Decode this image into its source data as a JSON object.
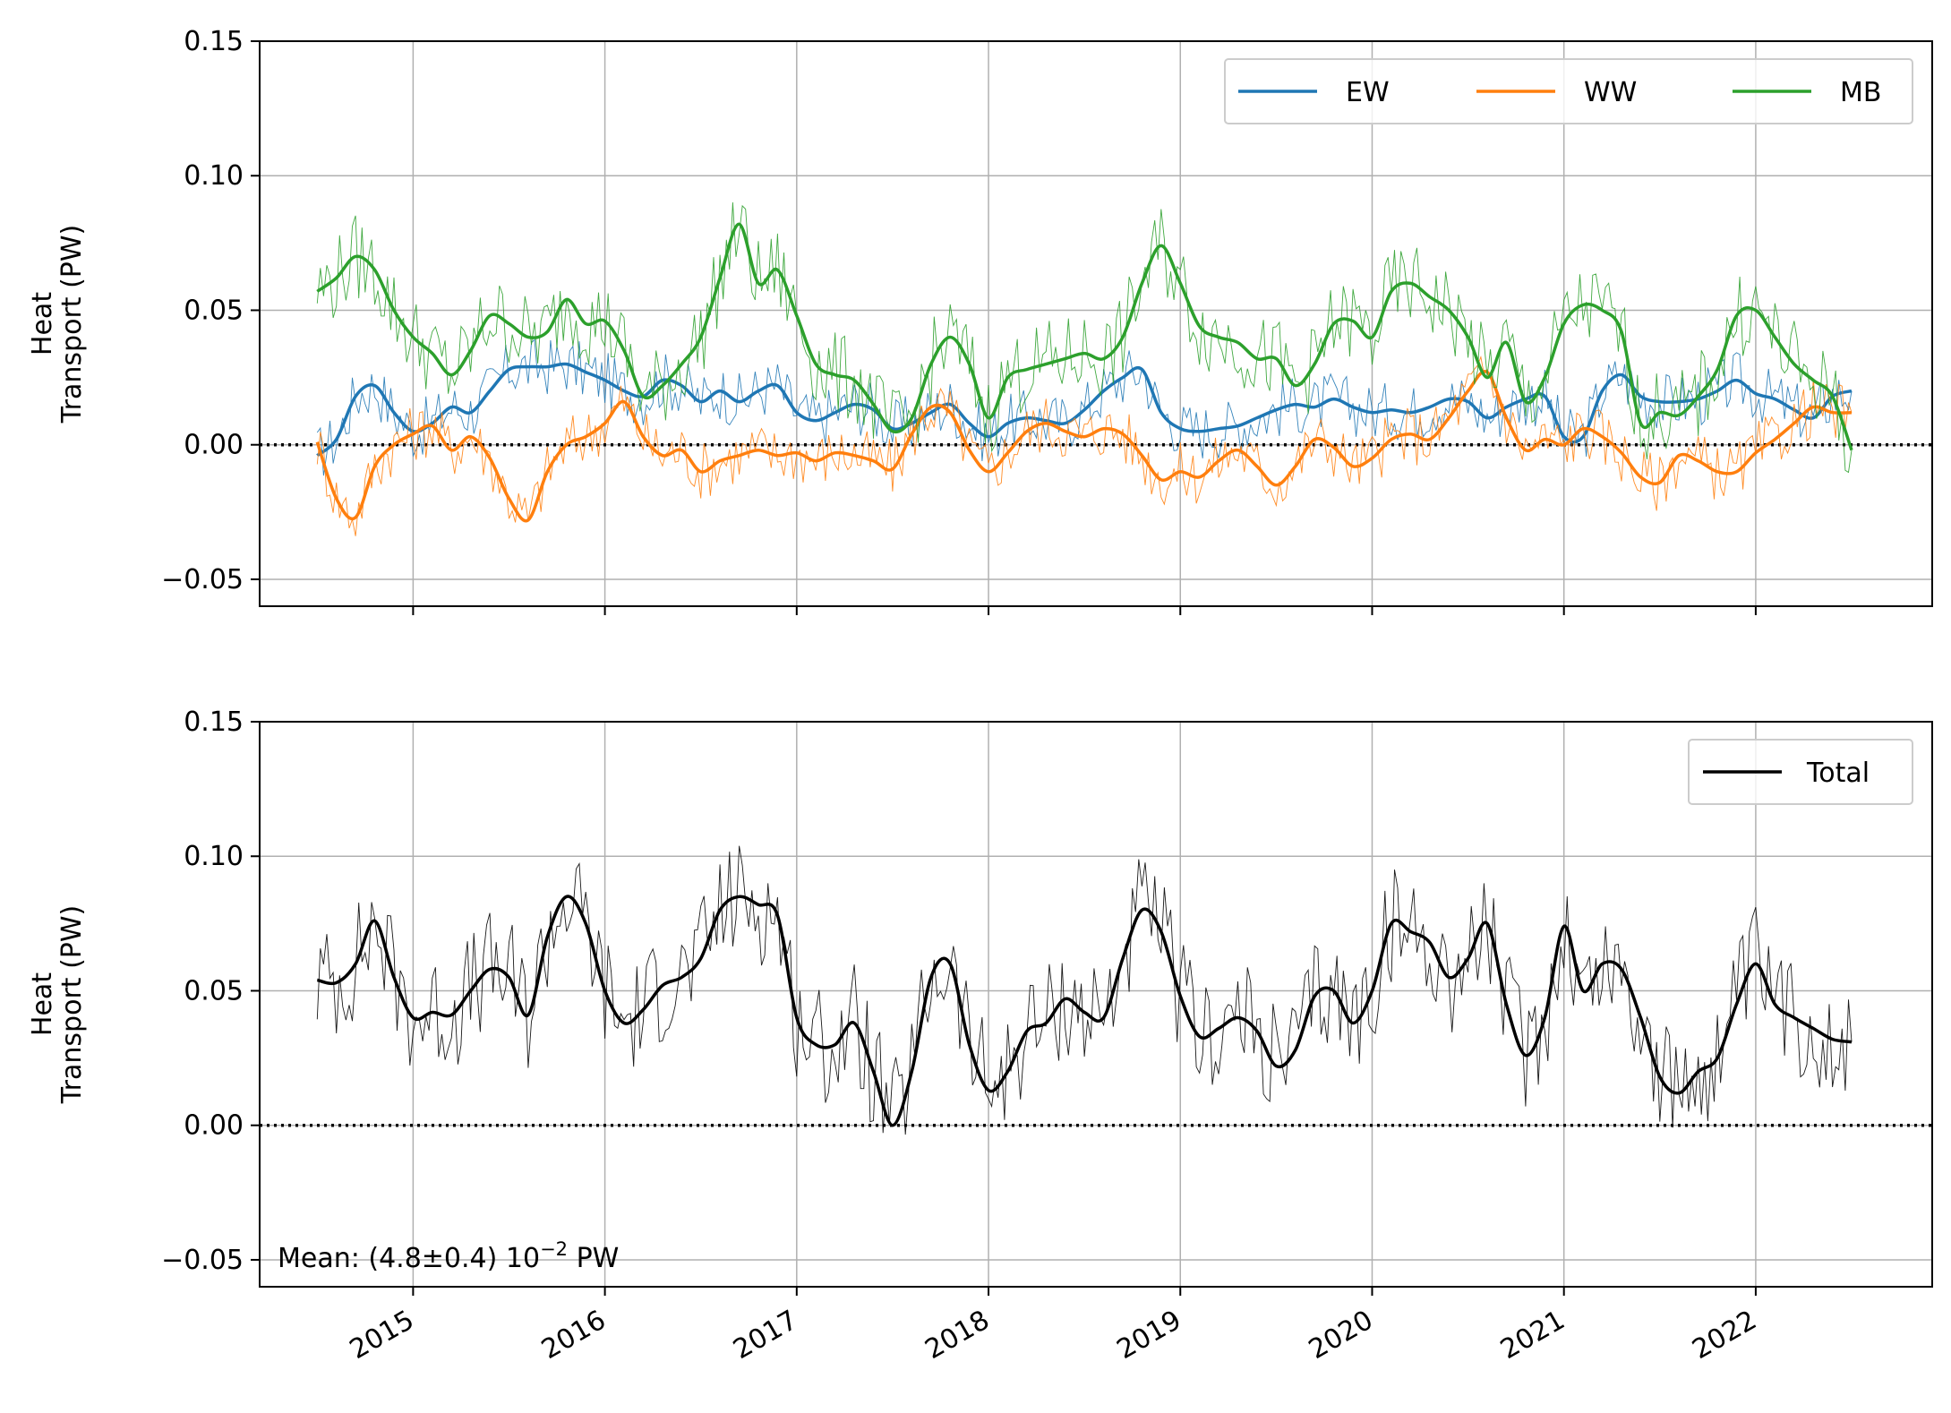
{
  "figure": {
    "colors": {
      "EW": "#1f77b4",
      "WW": "#ff7f0e",
      "MB": "#2ca02c",
      "Total": "#000000",
      "grid": "#b0b0b0"
    }
  },
  "chart_data": [
    {
      "type": "line",
      "panel": "top",
      "title": "",
      "ylabel_lines": [
        "Heat",
        "Transport (PW)"
      ],
      "xlabel": "",
      "ylim": [
        -0.06,
        0.15
      ],
      "yticks": [
        -0.05,
        0.0,
        0.05,
        0.1,
        0.15
      ],
      "ytick_labels": [
        "−0.05",
        "0.00",
        "0.05",
        "0.10",
        "0.15"
      ],
      "xlim": [
        2014.2,
        2022.92
      ],
      "xticks": [
        2015,
        2016,
        2017,
        2018,
        2019,
        2020,
        2021,
        2022
      ],
      "xtick_labels": [
        "",
        "",
        "",
        "",
        "",
        "",
        "",
        ""
      ],
      "grid": true,
      "zero_line": "dotted",
      "legend": {
        "placement": "top-right",
        "columns": 3
      },
      "series": [
        {
          "name": "EW",
          "color": "#1f77b4",
          "x": [
            2014.5,
            2014.6,
            2014.7,
            2014.8,
            2014.9,
            2015.0,
            2015.1,
            2015.2,
            2015.3,
            2015.4,
            2015.5,
            2015.6,
            2015.7,
            2015.8,
            2015.9,
            2016.0,
            2016.1,
            2016.2,
            2016.3,
            2016.4,
            2016.5,
            2016.6,
            2016.7,
            2016.8,
            2016.9,
            2017.0,
            2017.1,
            2017.2,
            2017.3,
            2017.4,
            2017.5,
            2017.6,
            2017.7,
            2017.8,
            2017.9,
            2018.0,
            2018.1,
            2018.2,
            2018.3,
            2018.4,
            2018.5,
            2018.6,
            2018.7,
            2018.8,
            2018.9,
            2019.0,
            2019.1,
            2019.2,
            2019.3,
            2019.4,
            2019.5,
            2019.6,
            2019.7,
            2019.8,
            2019.9,
            2020.0,
            2020.1,
            2020.2,
            2020.3,
            2020.4,
            2020.5,
            2020.6,
            2020.7,
            2020.8,
            2020.9,
            2021.0,
            2021.1,
            2021.2,
            2021.3,
            2021.4,
            2021.5,
            2021.6,
            2021.7,
            2021.8,
            2021.9,
            2022.0,
            2022.1,
            2022.2,
            2022.3,
            2022.4,
            2022.5
          ],
          "values": [
            -0.004,
            0.002,
            0.018,
            0.022,
            0.012,
            0.005,
            0.008,
            0.014,
            0.012,
            0.02,
            0.028,
            0.029,
            0.029,
            0.03,
            0.027,
            0.024,
            0.02,
            0.018,
            0.024,
            0.022,
            0.016,
            0.02,
            0.016,
            0.02,
            0.022,
            0.012,
            0.009,
            0.012,
            0.015,
            0.013,
            0.006,
            0.008,
            0.012,
            0.015,
            0.008,
            0.003,
            0.008,
            0.01,
            0.009,
            0.008,
            0.013,
            0.02,
            0.025,
            0.028,
            0.012,
            0.006,
            0.005,
            0.006,
            0.007,
            0.01,
            0.013,
            0.015,
            0.014,
            0.017,
            0.014,
            0.012,
            0.013,
            0.012,
            0.014,
            0.017,
            0.016,
            0.01,
            0.014,
            0.017,
            0.018,
            0.003,
            0.003,
            0.02,
            0.026,
            0.018,
            0.016,
            0.016,
            0.017,
            0.02,
            0.024,
            0.019,
            0.017,
            0.013,
            0.01,
            0.018,
            0.02
          ]
        },
        {
          "name": "WW",
          "color": "#ff7f0e",
          "x": [
            2014.5,
            2014.6,
            2014.7,
            2014.8,
            2014.9,
            2015.0,
            2015.1,
            2015.2,
            2015.3,
            2015.4,
            2015.5,
            2015.6,
            2015.7,
            2015.8,
            2015.9,
            2016.0,
            2016.1,
            2016.2,
            2016.3,
            2016.4,
            2016.5,
            2016.6,
            2016.7,
            2016.8,
            2016.9,
            2017.0,
            2017.1,
            2017.2,
            2017.3,
            2017.4,
            2017.5,
            2017.6,
            2017.7,
            2017.8,
            2017.9,
            2018.0,
            2018.1,
            2018.2,
            2018.3,
            2018.4,
            2018.5,
            2018.6,
            2018.7,
            2018.8,
            2018.9,
            2019.0,
            2019.1,
            2019.2,
            2019.3,
            2019.4,
            2019.5,
            2019.6,
            2019.7,
            2019.8,
            2019.9,
            2020.0,
            2020.1,
            2020.2,
            2020.3,
            2020.4,
            2020.5,
            2020.6,
            2020.7,
            2020.8,
            2020.9,
            2021.0,
            2021.1,
            2021.2,
            2021.3,
            2021.4,
            2021.5,
            2021.6,
            2021.7,
            2021.8,
            2021.9,
            2022.0,
            2022.1,
            2022.2,
            2022.3,
            2022.4,
            2022.5
          ],
          "values": [
            0.001,
            -0.02,
            -0.027,
            -0.008,
            0.0,
            0.004,
            0.007,
            -0.002,
            0.003,
            -0.005,
            -0.02,
            -0.028,
            -0.01,
            0.0,
            0.003,
            0.008,
            0.016,
            0.003,
            -0.004,
            -0.002,
            -0.01,
            -0.006,
            -0.004,
            -0.002,
            -0.004,
            -0.003,
            -0.006,
            -0.003,
            -0.004,
            -0.006,
            -0.009,
            0.004,
            0.014,
            0.012,
            -0.002,
            -0.01,
            -0.003,
            0.005,
            0.008,
            0.005,
            0.003,
            0.006,
            0.004,
            -0.004,
            -0.013,
            -0.01,
            -0.012,
            -0.006,
            -0.002,
            -0.008,
            -0.015,
            -0.008,
            0.002,
            -0.001,
            -0.008,
            -0.005,
            0.002,
            0.004,
            0.002,
            0.01,
            0.02,
            0.027,
            0.01,
            -0.002,
            0.002,
            0.0,
            0.006,
            0.003,
            -0.003,
            -0.012,
            -0.014,
            -0.004,
            -0.006,
            -0.01,
            -0.01,
            -0.003,
            0.002,
            0.008,
            0.014,
            0.012,
            0.012
          ]
        },
        {
          "name": "MB",
          "color": "#2ca02c",
          "x": [
            2014.5,
            2014.6,
            2014.7,
            2014.8,
            2014.9,
            2015.0,
            2015.1,
            2015.2,
            2015.3,
            2015.4,
            2015.5,
            2015.6,
            2015.7,
            2015.8,
            2015.9,
            2016.0,
            2016.1,
            2016.2,
            2016.3,
            2016.4,
            2016.5,
            2016.6,
            2016.7,
            2016.8,
            2016.9,
            2017.0,
            2017.1,
            2017.2,
            2017.3,
            2017.4,
            2017.5,
            2017.6,
            2017.7,
            2017.8,
            2017.9,
            2018.0,
            2018.1,
            2018.2,
            2018.3,
            2018.4,
            2018.5,
            2018.6,
            2018.7,
            2018.8,
            2018.9,
            2019.0,
            2019.1,
            2019.2,
            2019.3,
            2019.4,
            2019.5,
            2019.6,
            2019.7,
            2019.8,
            2019.9,
            2020.0,
            2020.1,
            2020.2,
            2020.3,
            2020.4,
            2020.5,
            2020.6,
            2020.7,
            2020.8,
            2020.9,
            2021.0,
            2021.1,
            2021.2,
            2021.3,
            2021.4,
            2021.5,
            2021.6,
            2021.7,
            2021.8,
            2021.9,
            2022.0,
            2022.1,
            2022.2,
            2022.3,
            2022.4,
            2022.5
          ],
          "values": [
            0.057,
            0.062,
            0.07,
            0.065,
            0.05,
            0.04,
            0.034,
            0.026,
            0.035,
            0.048,
            0.045,
            0.04,
            0.042,
            0.054,
            0.045,
            0.046,
            0.035,
            0.018,
            0.022,
            0.03,
            0.04,
            0.062,
            0.082,
            0.06,
            0.065,
            0.048,
            0.03,
            0.026,
            0.024,
            0.015,
            0.005,
            0.01,
            0.03,
            0.04,
            0.03,
            0.01,
            0.025,
            0.028,
            0.03,
            0.032,
            0.034,
            0.032,
            0.04,
            0.06,
            0.074,
            0.06,
            0.044,
            0.04,
            0.038,
            0.032,
            0.032,
            0.022,
            0.03,
            0.045,
            0.046,
            0.04,
            0.057,
            0.06,
            0.055,
            0.05,
            0.04,
            0.025,
            0.038,
            0.016,
            0.025,
            0.045,
            0.052,
            0.05,
            0.042,
            0.008,
            0.012,
            0.011,
            0.018,
            0.028,
            0.048,
            0.05,
            0.04,
            0.03,
            0.024,
            0.018,
            -0.002
          ]
        }
      ]
    },
    {
      "type": "line",
      "panel": "bottom",
      "title": "",
      "ylabel_lines": [
        "Heat",
        "Transport (PW)"
      ],
      "xlabel": "",
      "ylim": [
        -0.06,
        0.15
      ],
      "yticks": [
        -0.05,
        0.0,
        0.05,
        0.1,
        0.15
      ],
      "ytick_labels": [
        "−0.05",
        "0.00",
        "0.05",
        "0.10",
        "0.15"
      ],
      "xlim": [
        2014.2,
        2022.92
      ],
      "xticks": [
        2015,
        2016,
        2017,
        2018,
        2019,
        2020,
        2021,
        2022
      ],
      "xtick_labels": [
        "2015",
        "2016",
        "2017",
        "2018",
        "2019",
        "2020",
        "2021",
        "2022"
      ],
      "grid": true,
      "zero_line": "dotted",
      "legend": {
        "placement": "top-right",
        "columns": 1
      },
      "annotation": {
        "prefix": "Mean: (4.8±0.4) 10",
        "superscript": "−2",
        "suffix": " PW",
        "placement": "bottom-left"
      },
      "series": [
        {
          "name": "Total",
          "color": "#000000",
          "x": [
            2014.5,
            2014.6,
            2014.7,
            2014.8,
            2014.9,
            2015.0,
            2015.1,
            2015.2,
            2015.3,
            2015.4,
            2015.5,
            2015.6,
            2015.7,
            2015.8,
            2015.9,
            2016.0,
            2016.1,
            2016.2,
            2016.3,
            2016.4,
            2016.5,
            2016.6,
            2016.7,
            2016.8,
            2016.9,
            2017.0,
            2017.1,
            2017.2,
            2017.3,
            2017.4,
            2017.5,
            2017.6,
            2017.7,
            2017.8,
            2017.9,
            2018.0,
            2018.1,
            2018.2,
            2018.3,
            2018.4,
            2018.5,
            2018.6,
            2018.7,
            2018.8,
            2018.9,
            2019.0,
            2019.1,
            2019.2,
            2019.3,
            2019.4,
            2019.5,
            2019.6,
            2019.7,
            2019.8,
            2019.9,
            2020.0,
            2020.1,
            2020.2,
            2020.3,
            2020.4,
            2020.5,
            2020.6,
            2020.7,
            2020.8,
            2020.9,
            2021.0,
            2021.1,
            2021.2,
            2021.3,
            2021.4,
            2021.5,
            2021.6,
            2021.7,
            2021.8,
            2021.9,
            2022.0,
            2022.1,
            2022.2,
            2022.3,
            2022.4,
            2022.5
          ],
          "values": [
            0.054,
            0.053,
            0.06,
            0.076,
            0.055,
            0.04,
            0.042,
            0.041,
            0.05,
            0.058,
            0.055,
            0.041,
            0.07,
            0.085,
            0.075,
            0.05,
            0.038,
            0.043,
            0.052,
            0.055,
            0.062,
            0.08,
            0.085,
            0.082,
            0.078,
            0.04,
            0.03,
            0.03,
            0.038,
            0.02,
            0.0,
            0.02,
            0.055,
            0.06,
            0.03,
            0.013,
            0.02,
            0.035,
            0.038,
            0.047,
            0.042,
            0.04,
            0.062,
            0.08,
            0.072,
            0.048,
            0.033,
            0.036,
            0.04,
            0.035,
            0.022,
            0.028,
            0.048,
            0.05,
            0.038,
            0.05,
            0.075,
            0.072,
            0.068,
            0.055,
            0.062,
            0.075,
            0.045,
            0.026,
            0.04,
            0.074,
            0.05,
            0.06,
            0.058,
            0.04,
            0.018,
            0.012,
            0.02,
            0.025,
            0.045,
            0.06,
            0.045,
            0.04,
            0.036,
            0.032,
            0.031
          ]
        }
      ]
    }
  ]
}
